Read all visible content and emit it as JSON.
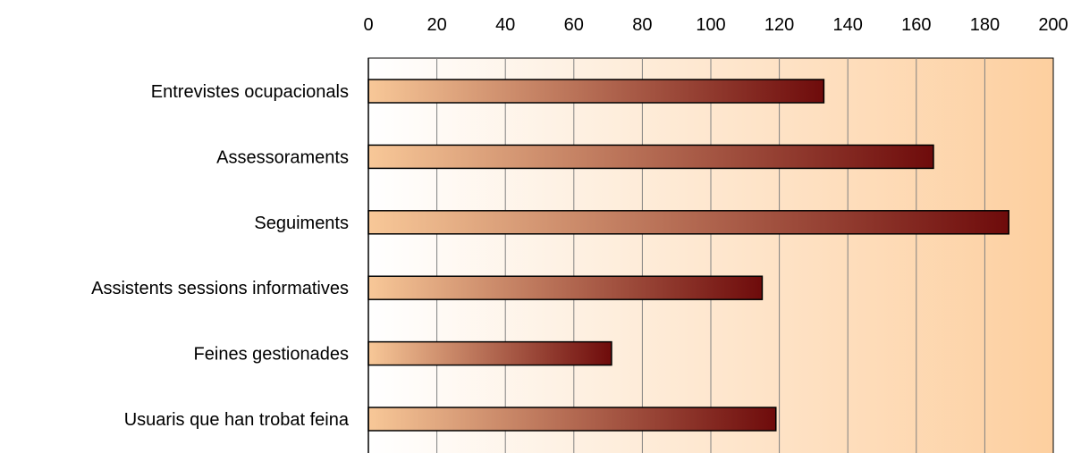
{
  "chart_data": {
    "type": "bar",
    "orientation": "horizontal",
    "categories": [
      "Entrevistes ocupacionals",
      "Assessoraments",
      "Seguiments",
      "Assistents sessions informatives",
      "Feines gestionades",
      "Usuaris que han trobat feina"
    ],
    "values": [
      133,
      165,
      187,
      115,
      71,
      119
    ],
    "xlim": [
      0,
      200
    ],
    "xticks": [
      "0",
      "20",
      "40",
      "60",
      "80",
      "100",
      "120",
      "140",
      "160",
      "180",
      "200"
    ],
    "x_axis_position": "top",
    "grid": true,
    "title": "",
    "xlabel": "",
    "ylabel": "",
    "colors": {
      "bar_start": "#f8c898",
      "bar_end": "#6e0b0b",
      "plot_bg_start": "#ffffff",
      "plot_bg_end": "#fdcf9f",
      "grid": "#808080"
    }
  }
}
